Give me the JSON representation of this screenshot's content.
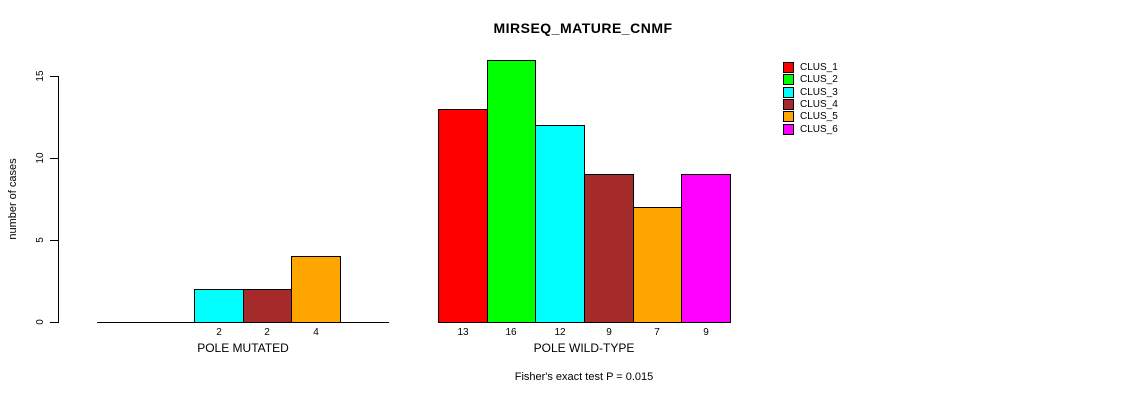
{
  "title": "MIRSEQ_MATURE_CNMF",
  "y_axis": {
    "label": "number of cases"
  },
  "footnote": "Fisher's exact test P = 0.015",
  "legend": {
    "items": [
      {
        "label": "CLUS_1",
        "color": "#FF0000"
      },
      {
        "label": "CLUS_2",
        "color": "#00FF00"
      },
      {
        "label": "CLUS_3",
        "color": "#00FFFF"
      },
      {
        "label": "CLUS_4",
        "color": "#A52A2A"
      },
      {
        "label": "CLUS_5",
        "color": "#FFA500"
      },
      {
        "label": "CLUS_6",
        "color": "#FF00FF"
      }
    ]
  },
  "chart_data": {
    "type": "bar",
    "title": "MIRSEQ_MATURE_CNMF",
    "ylabel": "number of cases",
    "ylim": [
      0,
      16
    ],
    "yticks": [
      0,
      5,
      10,
      15
    ],
    "grid": false,
    "legend_position": "right-outside-top",
    "series": [
      "CLUS_1",
      "CLUS_2",
      "CLUS_3",
      "CLUS_4",
      "CLUS_5",
      "CLUS_6"
    ],
    "colors": [
      "#FF0000",
      "#00FF00",
      "#00FFFF",
      "#A52A2A",
      "#FFA500",
      "#FF00FF"
    ],
    "groups": [
      {
        "label": "POLE MUTATED",
        "values": [
          0,
          0,
          2,
          2,
          4,
          0
        ]
      },
      {
        "label": "POLE WILD-TYPE",
        "values": [
          13,
          16,
          12,
          9,
          7,
          9
        ]
      }
    ],
    "annotation": "Fisher's exact test P = 0.015"
  }
}
